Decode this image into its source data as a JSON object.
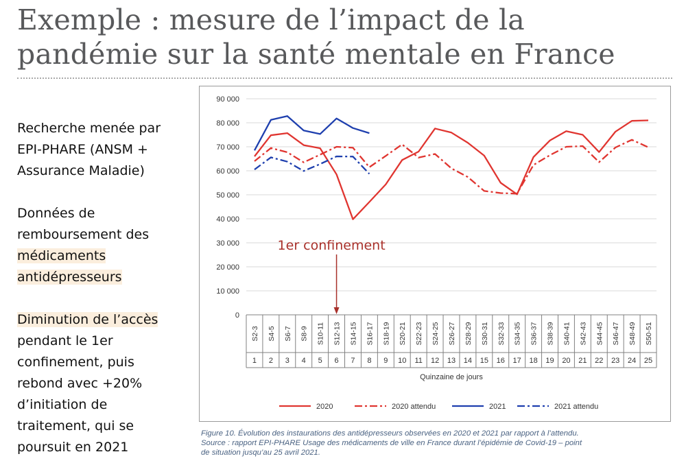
{
  "slide": {
    "title_line1": "Exemple : mesure de l’impact de la",
    "title_line2": "pandémie sur la santé mentale en France"
  },
  "left_panel": {
    "p1": [
      "Recherche menée par",
      "EPI-PHARE (ANSM +",
      "Assurance Maladie)"
    ],
    "p2": [
      "Données de",
      "remboursement des"
    ],
    "p2_highlight": [
      "médicaments",
      "antidépresseurs"
    ],
    "p3_highlight": "Diminution de l’accès",
    "p3": [
      "pendant le 1er",
      "confinement, puis",
      "rebond avec +20%",
      "d’initiation de",
      "traitement, qui se",
      "poursuit en 2021"
    ]
  },
  "caption": {
    "line1": "Figure 10. Évolution des instaurations des antidépresseurs observées en 2020 et 2021 par rapport à l’attendu.",
    "line2": "Source : rapport EPI-PHARE Usage des médicaments de ville en France durant l’épidémie de Covid-19 – point",
    "line3": "de situation jusqu’au 25 avril 2021."
  },
  "colors": {
    "red": "#e03530",
    "blue": "#1e3fae",
    "annotation": "#a8302a",
    "grid": "#d9d9d9"
  },
  "chart_data": {
    "type": "line",
    "title": "",
    "xlabel": "Quinzaine de jours",
    "ylabel": "",
    "ylim": [
      0,
      90000
    ],
    "y_ticks": [
      0,
      10000,
      20000,
      30000,
      40000,
      50000,
      60000,
      70000,
      80000,
      90000
    ],
    "y_tick_labels": [
      "0",
      "10 000",
      "20 000",
      "30 000",
      "40 000",
      "50 000",
      "60 000",
      "70 000",
      "80 000",
      "90 000"
    ],
    "categories": [
      "S2-3",
      "S4-5",
      "S6-7",
      "S8-9",
      "S10-11",
      "S12-13",
      "S14-15",
      "S16-17",
      "S18-19",
      "S20-21",
      "S22-23",
      "S24-25",
      "S26-27",
      "S28-29",
      "S30-31",
      "S32-33",
      "S34-35",
      "S36-37",
      "S38-39",
      "S40-41",
      "S42-43",
      "S44-45",
      "S46-47",
      "S48-49",
      "S50-51"
    ],
    "categories_index": [
      "1",
      "2",
      "3",
      "4",
      "5",
      "6",
      "7",
      "8",
      "9",
      "10",
      "11",
      "12",
      "13",
      "14",
      "15",
      "16",
      "17",
      "18",
      "19",
      "20",
      "21",
      "22",
      "23",
      "24",
      "25"
    ],
    "series": [
      {
        "name": "2020",
        "style": "solid",
        "color": "#e03530",
        "values": [
          66000,
          74800,
          75700,
          70700,
          69400,
          58500,
          39800,
          47000,
          54300,
          64500,
          68000,
          77600,
          75900,
          71700,
          66300,
          55000,
          50200,
          65700,
          72600,
          76500,
          75000,
          67800,
          76300,
          80800,
          81000
        ]
      },
      {
        "name": "2020 attendu",
        "style": "dashdot",
        "color": "#e03530",
        "values": [
          64000,
          69500,
          67700,
          63500,
          66700,
          70000,
          69600,
          61500,
          66200,
          71000,
          65500,
          67000,
          61000,
          57400,
          51600,
          50700,
          50500,
          62400,
          66500,
          70000,
          70300,
          63600,
          69700,
          72900,
          69800
        ]
      },
      {
        "name": "2021",
        "style": "solid",
        "color": "#1e3fae",
        "values": [
          68500,
          81200,
          82800,
          76800,
          75300,
          81800,
          77800,
          75700,
          null,
          null,
          null,
          null,
          null,
          null,
          null,
          null,
          null,
          null,
          null,
          null,
          null,
          null,
          null,
          null,
          null
        ]
      },
      {
        "name": "2021 attendu",
        "style": "dashdot",
        "color": "#1e3fae",
        "values": [
          60500,
          65600,
          63800,
          59900,
          62800,
          66000,
          65900,
          58700,
          null,
          null,
          null,
          null,
          null,
          null,
          null,
          null,
          null,
          null,
          null,
          null,
          null,
          null,
          null,
          null,
          null
        ]
      }
    ],
    "legend": [
      "2020",
      "2020 attendu",
      "2021",
      "2021 attendu"
    ],
    "legend_position": "bottom",
    "annotation": {
      "text": "1er confinement",
      "x_category": "S12-13"
    },
    "grid": true
  }
}
